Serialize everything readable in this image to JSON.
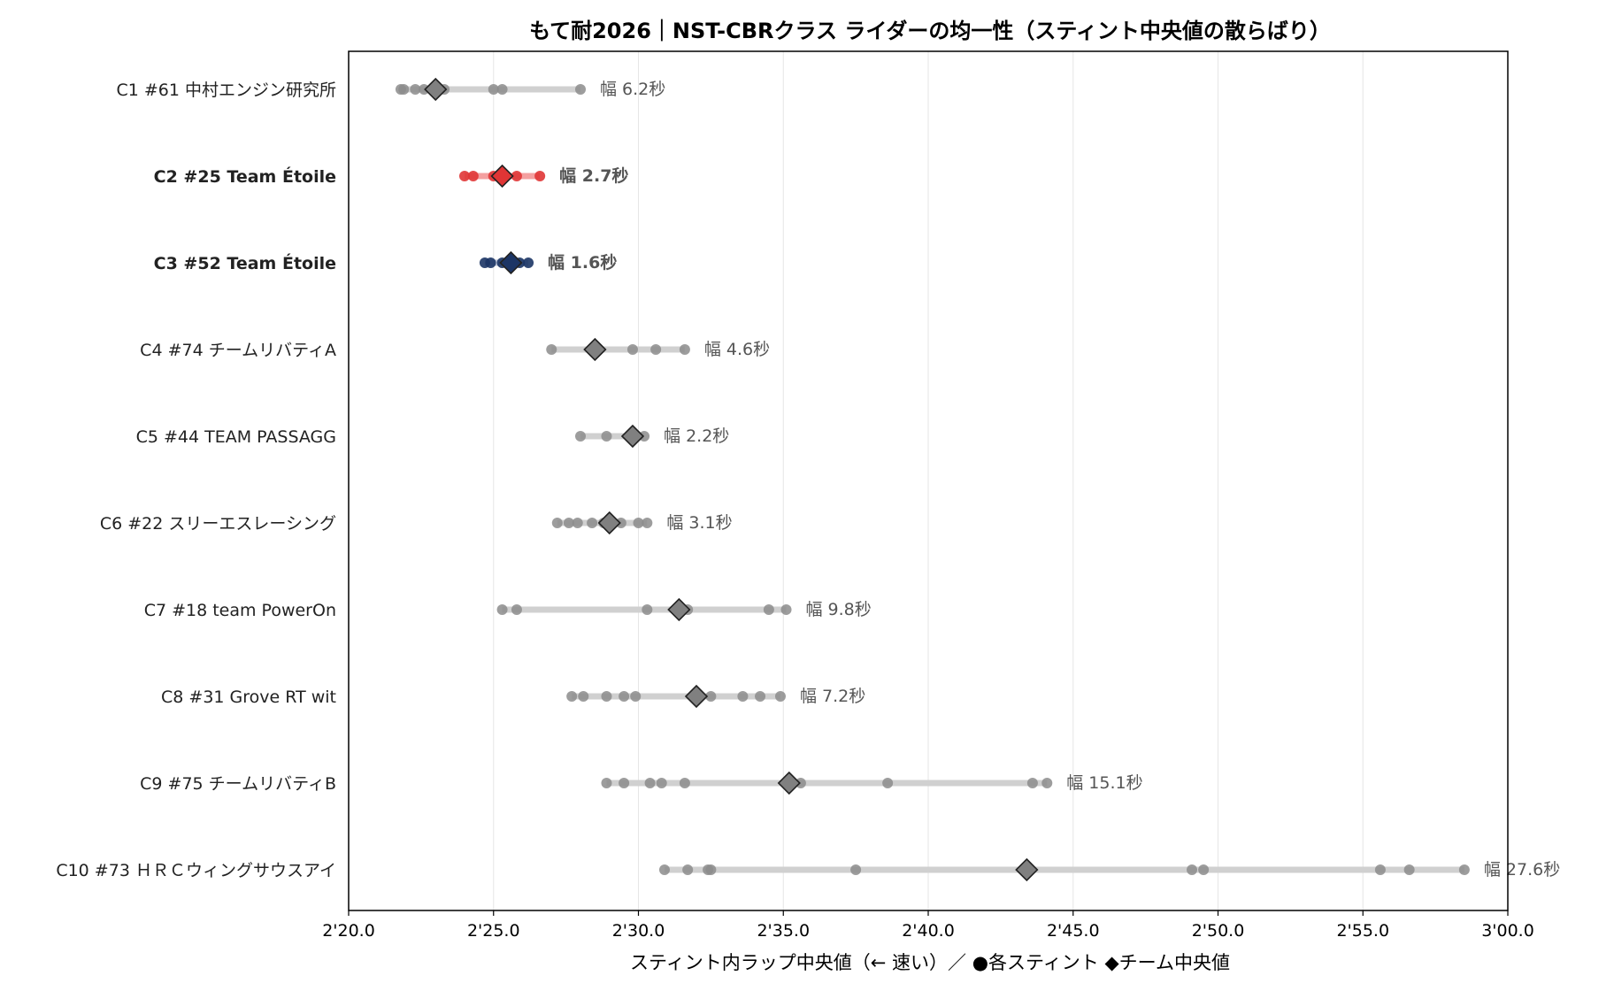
{
  "chart_data": {
    "type": "scatter",
    "title": "もて耐2026｜NST-CBRクラス ライダーの均一性（スティント中央値の散らばり）",
    "xlabel": "スティント内ラップ中央値（← 速い）／ ●各スティント ◆チーム中央値",
    "xlim": [
      140.0,
      180.0
    ],
    "x_ticks": [
      140,
      145,
      150,
      155,
      160,
      165,
      170,
      175,
      180
    ],
    "x_tick_labels": [
      "2'20.0",
      "2'25.0",
      "2'30.0",
      "2'35.0",
      "2'40.0",
      "2'45.0",
      "2'50.0",
      "2'55.0",
      "3'00.0"
    ],
    "grid": "vertical",
    "units": "seconds",
    "colors": {
      "default": "#8c8c8c",
      "c2": "#e03535",
      "c3": "#1c3565",
      "range_bar": "#d0d0d0",
      "c2_bar": "#f4a0a0",
      "c3_bar": "#b8c0d4"
    },
    "teams": [
      {
        "label": "C1 #61 中村エンジン研究所",
        "highlight": "none",
        "stints": [
          141.8,
          141.9,
          142.3,
          142.6,
          142.9,
          143.3,
          145.0,
          145.3,
          148.0
        ],
        "median": 143.0,
        "width_text": "幅 6.2秒"
      },
      {
        "label": "C2 #25 Team Étoile",
        "highlight": "red",
        "stints": [
          144.0,
          144.3,
          145.0,
          145.4,
          145.8,
          146.6
        ],
        "median": 145.3,
        "width_text": "幅 2.7秒"
      },
      {
        "label": "C3 #52 Team Étoile",
        "highlight": "navy",
        "stints": [
          144.7,
          144.9,
          145.3,
          145.6,
          145.9,
          146.2
        ],
        "median": 145.6,
        "width_text": "幅 1.6秒"
      },
      {
        "label": "C4 #74 チームリバティA",
        "highlight": "none",
        "stints": [
          147.0,
          149.8,
          150.6,
          151.6
        ],
        "median": 148.5,
        "width_text": "幅 4.6秒"
      },
      {
        "label": "C5 #44 TEAM PASSAGG",
        "highlight": "none",
        "stints": [
          148.0,
          148.9,
          149.7,
          150.2
        ],
        "median": 149.8,
        "width_text": "幅 2.2秒"
      },
      {
        "label": "C6 #22 スリーエスレーシング",
        "highlight": "none",
        "stints": [
          147.2,
          147.6,
          147.9,
          148.4,
          148.8,
          149.4,
          150.0,
          150.3
        ],
        "median": 149.0,
        "width_text": "幅 3.1秒"
      },
      {
        "label": "C7 #18 team PowerOn",
        "highlight": "none",
        "stints": [
          145.3,
          145.8,
          150.3,
          151.3,
          151.7,
          154.5,
          155.1
        ],
        "median": 151.4,
        "width_text": "幅 9.8秒"
      },
      {
        "label": "C8 #31 Grove RT wit",
        "highlight": "none",
        "stints": [
          147.7,
          148.1,
          148.9,
          149.5,
          149.9,
          152.5,
          153.6,
          154.2,
          154.9
        ],
        "median": 152.0,
        "width_text": "幅 7.2秒"
      },
      {
        "label": "C9 #75 チームリバティB",
        "highlight": "none",
        "stints": [
          148.9,
          149.5,
          150.4,
          150.8,
          151.6,
          155.6,
          158.6,
          163.6,
          164.1
        ],
        "median": 155.2,
        "width_text": "幅 15.1秒"
      },
      {
        "label": "C10 #73 ＨＲＣウィングサウスアイ",
        "highlight": "none",
        "stints": [
          150.9,
          151.7,
          152.4,
          152.5,
          157.5,
          169.1,
          169.5,
          175.6,
          176.6,
          178.5
        ],
        "median": 163.4,
        "width_text": "幅 27.6秒"
      }
    ]
  }
}
